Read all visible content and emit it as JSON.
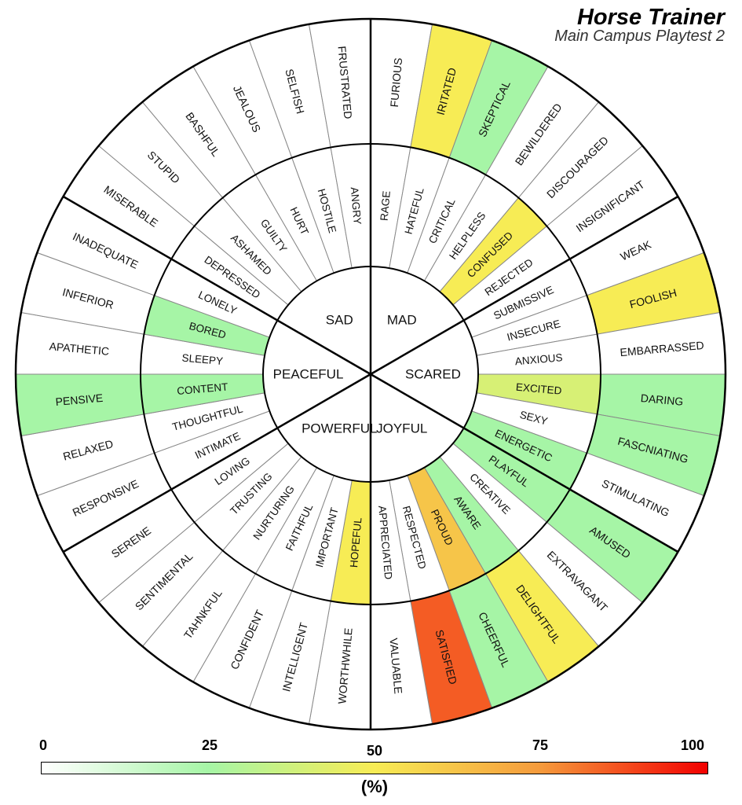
{
  "header": {
    "title": "Horse Trainer",
    "subtitle": "Main Campus Playtest 2"
  },
  "legend": {
    "ticks": [
      "0",
      "25",
      "50",
      "75",
      "100"
    ],
    "unit": "(%)",
    "color_stops": [
      "#ffffff",
      "#a6f5a6",
      "#f7ec55",
      "#f59a3c",
      "#f20000"
    ]
  },
  "wheel": {
    "core": [
      {
        "label": "MAD"
      },
      {
        "label": "SCARED"
      },
      {
        "label": "JOYFUL"
      },
      {
        "label": "POWERFUL"
      },
      {
        "label": "PEACEFUL"
      },
      {
        "label": "SAD"
      }
    ],
    "middle": [
      {
        "label": "RAGE",
        "value": 0
      },
      {
        "label": "HATEFUL",
        "value": 0
      },
      {
        "label": "CRITICAL",
        "value": 0
      },
      {
        "label": "HELPLESS",
        "value": 0
      },
      {
        "label": "CONFUSED",
        "value": 50
      },
      {
        "label": "REJECTED",
        "value": 0
      },
      {
        "label": "SUBMISSIVE",
        "value": 0
      },
      {
        "label": "INSECURE",
        "value": 0
      },
      {
        "label": "ANXIOUS",
        "value": 0
      },
      {
        "label": "EXCITED",
        "value": 40
      },
      {
        "label": "SEXY",
        "value": 0
      },
      {
        "label": "ENERGETIC",
        "value": 25
      },
      {
        "label": "PLAYFUL",
        "value": 25
      },
      {
        "label": "CREATIVE",
        "value": 0
      },
      {
        "label": "AWARE",
        "value": 25
      },
      {
        "label": "PROUD",
        "value": 62
      },
      {
        "label": "RESPECTED",
        "value": 0
      },
      {
        "label": "APPRECIATED",
        "value": 0
      },
      {
        "label": "HOPEFUL",
        "value": 50
      },
      {
        "label": "IMPORTANT",
        "value": 0
      },
      {
        "label": "FAITHFUL",
        "value": 0
      },
      {
        "label": "NURTURING",
        "value": 0
      },
      {
        "label": "TRUSTING",
        "value": 0
      },
      {
        "label": "LOVING",
        "value": 0
      },
      {
        "label": "INTIMATE",
        "value": 0
      },
      {
        "label": "THOUGHTFUL",
        "value": 0
      },
      {
        "label": "CONTENT",
        "value": 25
      },
      {
        "label": "SLEEPY",
        "value": 0
      },
      {
        "label": "BORED",
        "value": 25
      },
      {
        "label": "LONELY",
        "value": 0
      },
      {
        "label": "DEPRESSED",
        "value": 0
      },
      {
        "label": "ASHAMED",
        "value": 0
      },
      {
        "label": "GUILTY",
        "value": 0
      },
      {
        "label": "HURT",
        "value": 0
      },
      {
        "label": "HOSTILE",
        "value": 0
      },
      {
        "label": "ANGRY",
        "value": 0
      }
    ],
    "outer": [
      {
        "label": "FURIOUS",
        "value": 0
      },
      {
        "label": "IRITATED",
        "value": 50
      },
      {
        "label": "SKEPTICAL",
        "value": 25
      },
      {
        "label": "BEWILDERED",
        "value": 0
      },
      {
        "label": "DISCOURAGED",
        "value": 0
      },
      {
        "label": "INSIGNIFICANT",
        "value": 0
      },
      {
        "label": "WEAK",
        "value": 0
      },
      {
        "label": "FOOLISH",
        "value": 50
      },
      {
        "label": "EMBARRASSED",
        "value": 0
      },
      {
        "label": "DARING",
        "value": 25
      },
      {
        "label": "FASCNIATING",
        "value": 25
      },
      {
        "label": "STIMULATING",
        "value": 0
      },
      {
        "label": "AMUSED",
        "value": 25
      },
      {
        "label": "EXTRAVAGANT",
        "value": 0
      },
      {
        "label": "DELIGHTFUL",
        "value": 50
      },
      {
        "label": "CHEERFUL",
        "value": 25
      },
      {
        "label": "SATISFIED",
        "value": 85
      },
      {
        "label": "VALUABLE",
        "value": 0
      },
      {
        "label": "WORTHWHILE",
        "value": 0
      },
      {
        "label": "INTELLIGENT",
        "value": 0
      },
      {
        "label": "CONFIDENT",
        "value": 0
      },
      {
        "label": "TAHNKFUL",
        "value": 0
      },
      {
        "label": "SENTIMENTAL",
        "value": 0
      },
      {
        "label": "SERENE",
        "value": 0
      },
      {
        "label": "RESPONSIVE",
        "value": 0
      },
      {
        "label": "RELAXED",
        "value": 0
      },
      {
        "label": "PENSIVE",
        "value": 25
      },
      {
        "label": "APATHETIC",
        "value": 0
      },
      {
        "label": "INFERIOR",
        "value": 0
      },
      {
        "label": "INADEQUATE",
        "value": 0
      },
      {
        "label": "MISERABLE",
        "value": 0
      },
      {
        "label": "STUPID",
        "value": 0
      },
      {
        "label": "BASHFUL",
        "value": 0
      },
      {
        "label": "JEALOUS",
        "value": 0
      },
      {
        "label": "SELFISH",
        "value": 0
      },
      {
        "label": "FRUSTRATED",
        "value": 0
      }
    ]
  }
}
